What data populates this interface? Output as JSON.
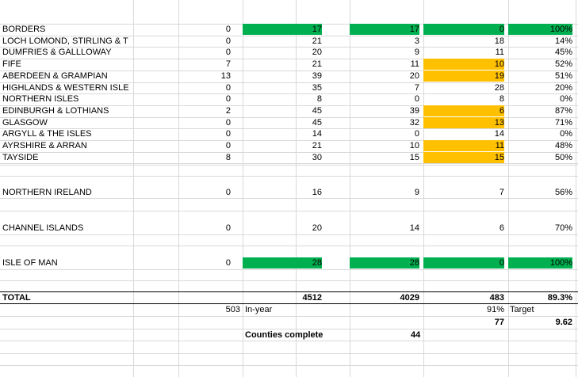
{
  "colors": {
    "green": "#00b050",
    "amber": "#ffc000"
  },
  "regions": [
    {
      "name": "BORDERS",
      "v1": "0",
      "v2": "17",
      "v3": "17",
      "v4": "0",
      "pct": "100%",
      "h2": "g",
      "h3": "g",
      "h4": "g",
      "h5": "g"
    },
    {
      "name": "LOCH LOMOND, STIRLING & T",
      "v1": "0",
      "v2": "21",
      "v3": "3",
      "v4": "18",
      "pct": "14%"
    },
    {
      "name": "DUMFRIES & GALLLOWAY",
      "v1": "0",
      "v2": "20",
      "v3": "9",
      "v4": "11",
      "pct": "45%"
    },
    {
      "name": "FIFE",
      "v1": "7",
      "v2": "21",
      "v3": "11",
      "v4": "10",
      "pct": "52%",
      "h4": "y"
    },
    {
      "name": "ABERDEEN & GRAMPIAN",
      "v1": "13",
      "v2": "39",
      "v3": "20",
      "v4": "19",
      "pct": "51%",
      "h4": "y"
    },
    {
      "name": "HIGHLANDS & WESTERN ISLE",
      "v1": "0",
      "v2": "35",
      "v3": "7",
      "v4": "28",
      "pct": "20%"
    },
    {
      "name": "NORTHERN ISLES",
      "v1": "0",
      "v2": "8",
      "v3": "0",
      "v4": "8",
      "pct": "0%"
    },
    {
      "name": "EDINBURGH & LOTHIANS",
      "v1": "2",
      "v2": "45",
      "v3": "39",
      "v4": "6",
      "pct": "87%",
      "h4": "y"
    },
    {
      "name": "GLASGOW",
      "v1": "0",
      "v2": "45",
      "v3": "32",
      "v4": "13",
      "pct": "71%",
      "h4": "y"
    },
    {
      "name": "ARGYLL & THE ISLES",
      "v1": "0",
      "v2": "14",
      "v3": "0",
      "v4": "14",
      "pct": "0%"
    },
    {
      "name": "AYRSHIRE & ARRAN",
      "v1": "0",
      "v2": "21",
      "v3": "10",
      "v4": "11",
      "pct": "48%",
      "h4": "y"
    },
    {
      "name": "TAYSIDE",
      "v1": "8",
      "v2": "30",
      "v3": "15",
      "v4": "15",
      "pct": "50%",
      "h4": "y"
    }
  ],
  "other_regions": [
    {
      "name": "NORTHERN IRELAND",
      "v1": "0",
      "v2": "16",
      "v3": "9",
      "v4": "7",
      "pct": "56%"
    },
    {
      "name": "CHANNEL ISLANDS",
      "v1": "0",
      "v2": "20",
      "v3": "14",
      "v4": "6",
      "pct": "70%"
    },
    {
      "name": "ISLE OF MAN",
      "v1": "0",
      "v2": "28",
      "v3": "28",
      "v4": "0",
      "pct": "100%",
      "h2": "g",
      "h3": "g",
      "h4": "g",
      "h5": "g"
    }
  ],
  "total": {
    "label": "TOTAL",
    "v2": "4512",
    "v3": "4029",
    "v4": "483",
    "pct": "89.3%"
  },
  "inyear": {
    "value": "503",
    "label": "In-year",
    "target_pct": "91%",
    "target_label": "Target"
  },
  "row3": {
    "v4": "77",
    "v5": "9.62"
  },
  "counties": {
    "label": "Counties complete",
    "value": "44"
  }
}
